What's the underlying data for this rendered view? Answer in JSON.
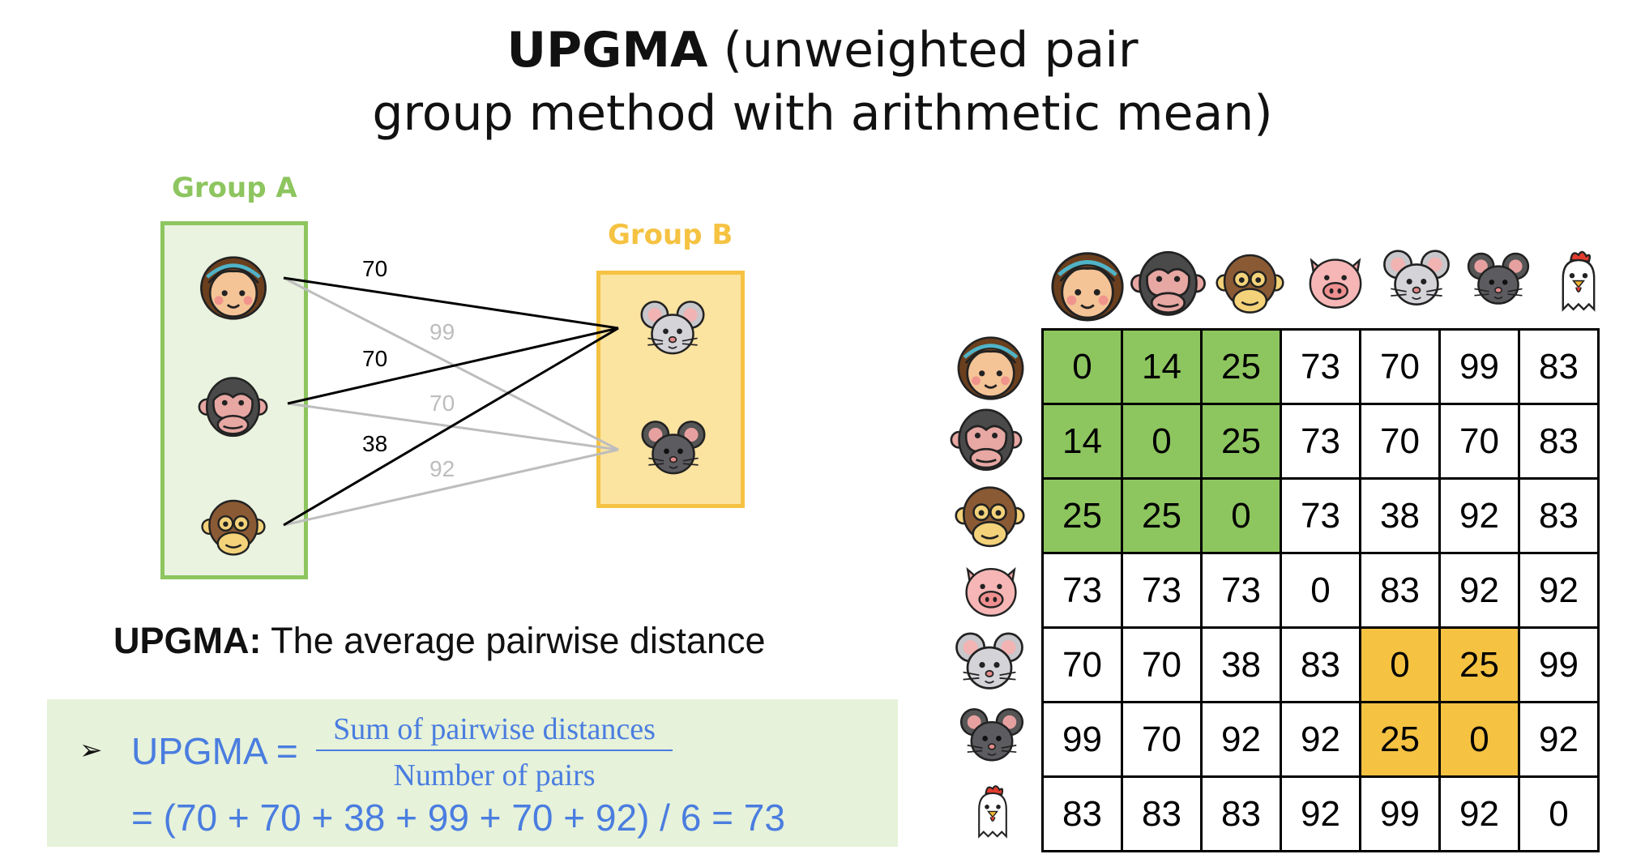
{
  "title": {
    "bold": "UPGMA",
    "rest1": " (unweighted pair",
    "line2": "group method with arithmetic mean)"
  },
  "group_a": {
    "label": "Group A",
    "color": "#8dc55f",
    "fill": "#e9f3df"
  },
  "group_b": {
    "label": "Group B",
    "color": "#f5c242",
    "fill": "#fbe3a0"
  },
  "edges": [
    {
      "from": "human",
      "to": "rat-light",
      "label": "70",
      "style": "dark"
    },
    {
      "from": "human",
      "to": "rat-dark",
      "label": "99",
      "style": "light"
    },
    {
      "from": "chimp",
      "to": "rat-light",
      "label": "70",
      "style": "dark"
    },
    {
      "from": "chimp",
      "to": "rat-dark",
      "label": "70",
      "style": "light"
    },
    {
      "from": "monkey",
      "to": "rat-light",
      "label": "38",
      "style": "dark"
    },
    {
      "from": "monkey",
      "to": "rat-dark",
      "label": "92",
      "style": "light"
    }
  ],
  "subtitle": {
    "bold": "UPGMA:",
    "rest": " The average pairwise distance"
  },
  "formula": {
    "arrow": "➢",
    "lhs": "UPGMA =",
    "numerator": "Sum of pairwise distances",
    "denominator": "Number of pairs",
    "line2": "= (70 + 70 + 38 + 99 + 70 + 92) / 6 = 73"
  },
  "matrix": {
    "icons": [
      "human-icon",
      "chimpanzee-icon",
      "monkey-icon",
      "pig-icon",
      "light-mouse-icon",
      "dark-mouse-icon",
      "chicken-icon"
    ],
    "rows": [
      [
        "0",
        "14",
        "25",
        "73",
        "70",
        "99",
        "83"
      ],
      [
        "14",
        "0",
        "25",
        "73",
        "70",
        "70",
        "83"
      ],
      [
        "25",
        "25",
        "0",
        "73",
        "38",
        "92",
        "83"
      ],
      [
        "73",
        "73",
        "73",
        "0",
        "83",
        "92",
        "92"
      ],
      [
        "70",
        "70",
        "38",
        "83",
        "0",
        "25",
        "99"
      ],
      [
        "99",
        "70",
        "92",
        "92",
        "25",
        "0",
        "92"
      ],
      [
        "83",
        "83",
        "83",
        "92",
        "99",
        "92",
        "0"
      ]
    ],
    "highlight_green": "#8dc55f",
    "highlight_yellow": "#f5c242"
  }
}
